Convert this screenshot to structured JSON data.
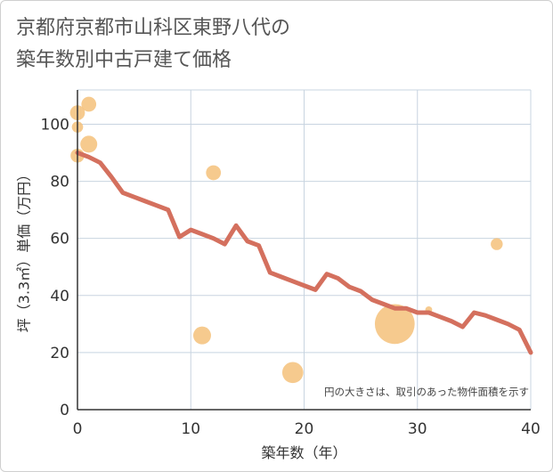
{
  "chart_data": {
    "type": "line+bubble",
    "title_line1": "京都府京都市山科区東野八代の",
    "title_line2": "築年数別中古戸建て価格",
    "xlabel": "築年数（年）",
    "ylabel": "坪（3.3㎡）単価（万円）",
    "xlim": [
      0,
      40
    ],
    "ylim": [
      0,
      112
    ],
    "xticks": [
      0,
      10,
      20,
      30,
      40
    ],
    "yticks": [
      0,
      20,
      40,
      60,
      80,
      100
    ],
    "grid": true,
    "note": "円の大きさは、取引のあった物件面積を示す",
    "colors": {
      "line": "#d4705e",
      "bubble": "#f5c17a",
      "grid": "#c8d4e0",
      "axis": "#333333"
    },
    "line": {
      "x": [
        0,
        1,
        2,
        3,
        4,
        5,
        6,
        7,
        8,
        9,
        10,
        11,
        12,
        13,
        14,
        15,
        16,
        17,
        18,
        19,
        20,
        21,
        22,
        23,
        24,
        25,
        26,
        27,
        28,
        29,
        30,
        31,
        32,
        33,
        34,
        35,
        36,
        37,
        38,
        39,
        40
      ],
      "y": [
        90,
        88.5,
        86.5,
        81.5,
        76,
        74.5,
        73,
        71.5,
        70,
        60.5,
        63,
        61.5,
        60,
        58,
        64.5,
        59,
        57.5,
        48,
        46.5,
        45,
        43.5,
        42,
        47.5,
        46,
        43,
        41.5,
        38.5,
        37,
        35.5,
        35.5,
        34,
        34,
        32.5,
        31,
        29,
        34,
        33,
        31.5,
        30,
        28,
        20
      ]
    },
    "bubbles": [
      {
        "x": 0,
        "y": 104,
        "size": 70
      },
      {
        "x": 0,
        "y": 99,
        "size": 40
      },
      {
        "x": 0,
        "y": 89,
        "size": 60
      },
      {
        "x": 1,
        "y": 107,
        "size": 70
      },
      {
        "x": 1,
        "y": 93,
        "size": 90
      },
      {
        "x": 11,
        "y": 26,
        "size": 100
      },
      {
        "x": 12,
        "y": 83,
        "size": 70
      },
      {
        "x": 19,
        "y": 13,
        "size": 140
      },
      {
        "x": 28,
        "y": 30,
        "size": 500
      },
      {
        "x": 31,
        "y": 35,
        "size": 15
      },
      {
        "x": 37,
        "y": 58,
        "size": 45
      }
    ]
  }
}
